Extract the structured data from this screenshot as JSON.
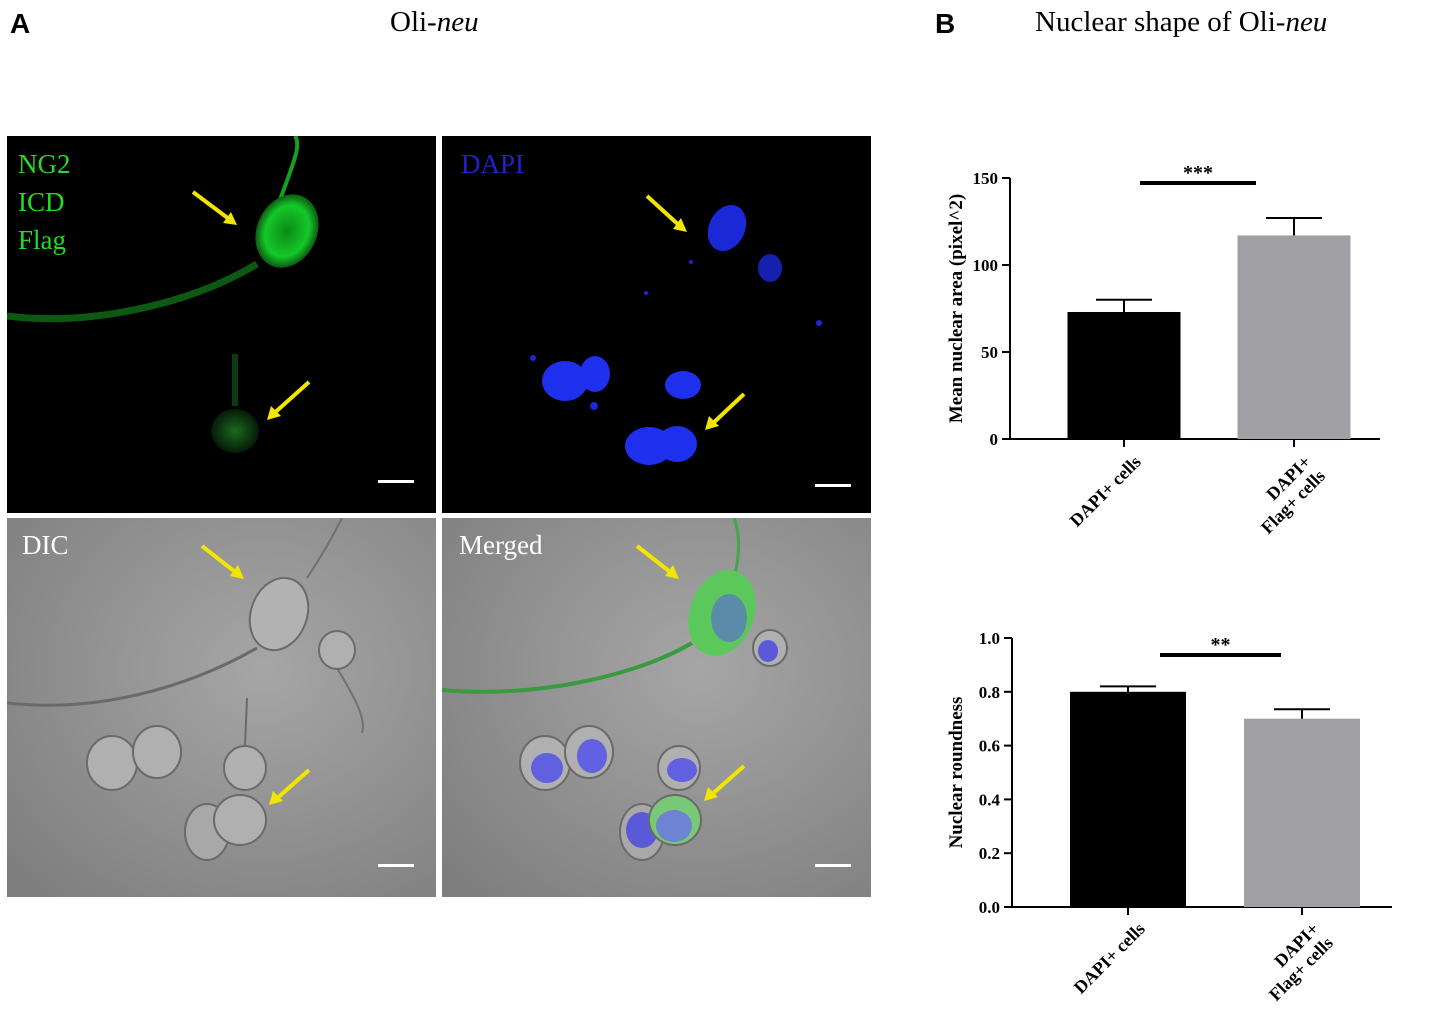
{
  "figure": {
    "panel_a": {
      "letter": "A",
      "title_main": "Oli-",
      "title_italic": "neu"
    },
    "panel_b": {
      "letter": "B",
      "title_main": "Nuclear shape of Oli-",
      "title_italic": "neu"
    }
  },
  "micrographs": [
    {
      "name": "ng2-icd-flag",
      "label": "NG2\nICD\nFlag",
      "label_color": "#22dd22"
    },
    {
      "name": "dapi",
      "label": "DAPI",
      "label_color": "#2222cc"
    },
    {
      "name": "dic",
      "label": "DIC",
      "label_color": "#ffffff"
    },
    {
      "name": "merged",
      "label": "Merged",
      "label_color": "#ffffff"
    }
  ],
  "chart_data": [
    {
      "type": "bar",
      "categories": [
        "DAPI+ cells",
        "DAPI+\nFlag+ cells"
      ],
      "values": [
        73,
        117
      ],
      "error": [
        7,
        10
      ],
      "colors": [
        "#000000",
        "#a0a0a4"
      ],
      "ylabel": "Mean nuclear area (pixel^2)",
      "ylim": [
        0,
        150
      ],
      "yticks": [
        0,
        50,
        100,
        150
      ],
      "ytick_labels": [
        "0",
        "50",
        "100",
        "150"
      ],
      "significance": "***",
      "grid": false
    },
    {
      "type": "bar",
      "categories": [
        "DAPI+ cells",
        "DAPI+\nFlag+ cells"
      ],
      "values": [
        0.8,
        0.7
      ],
      "error": [
        0.02,
        0.035
      ],
      "colors": [
        "#000000",
        "#a0a0a4"
      ],
      "ylabel": "Nuclear roundness",
      "ylim": [
        0,
        1.0
      ],
      "yticks": [
        0,
        0.2,
        0.4,
        0.6,
        0.8,
        1.0
      ],
      "ytick_labels": [
        "0.0",
        "0.2",
        "0.4",
        "0.6",
        "0.8",
        "1.0"
      ],
      "significance": "**",
      "grid": false
    }
  ]
}
